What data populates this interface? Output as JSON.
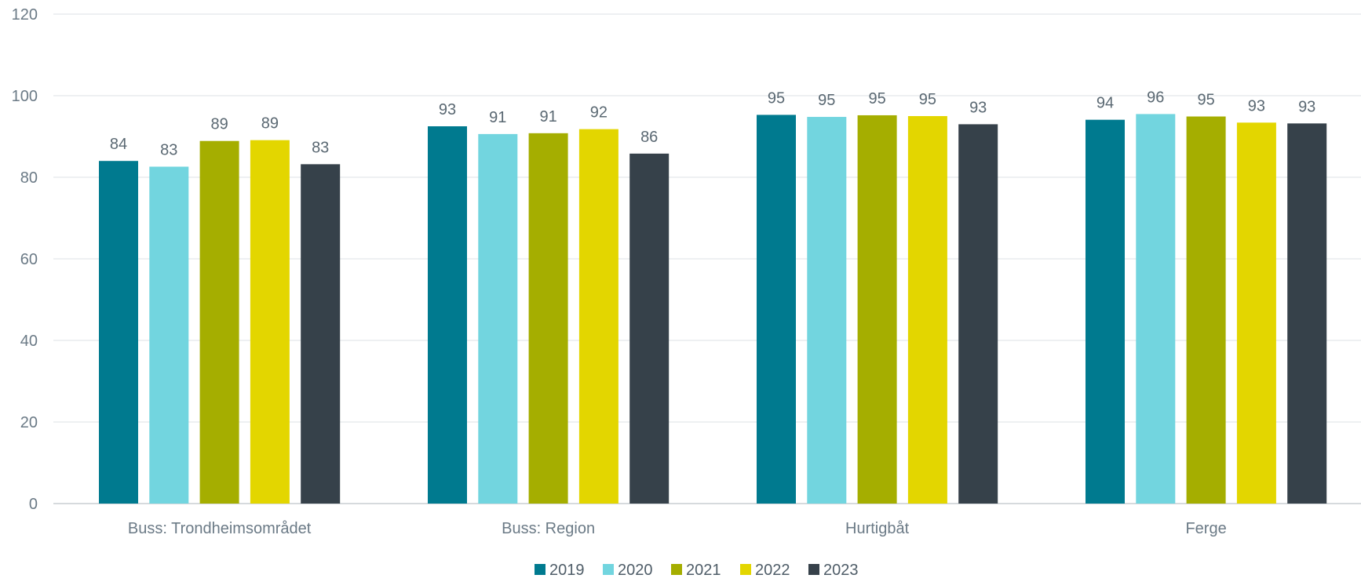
{
  "chart_data": {
    "type": "bar",
    "categories": [
      "Buss: Trondheimsområdet",
      "Buss: Region",
      "Hurtigbåt",
      "Ferge"
    ],
    "series": [
      {
        "name": "2019",
        "color": "#007a8f",
        "values": [
          84,
          92.5,
          95.3,
          94.1
        ],
        "labels": [
          "84",
          "93",
          "95",
          "94"
        ]
      },
      {
        "name": "2020",
        "color": "#72d5df",
        "values": [
          82.6,
          90.6,
          94.8,
          95.5
        ],
        "labels": [
          "83",
          "91",
          "95",
          "96"
        ]
      },
      {
        "name": "2021",
        "color": "#a5ae00",
        "values": [
          88.9,
          90.8,
          95.2,
          94.9
        ],
        "labels": [
          "89",
          "91",
          "95",
          "95"
        ]
      },
      {
        "name": "2022",
        "color": "#e3d600",
        "values": [
          89.1,
          91.8,
          95.0,
          93.4
        ],
        "labels": [
          "89",
          "92",
          "95",
          "93"
        ]
      },
      {
        "name": "2023",
        "color": "#36414a",
        "values": [
          83.2,
          85.8,
          93.0,
          93.2
        ],
        "labels": [
          "83",
          "86",
          "93",
          "93"
        ]
      }
    ],
    "yticks": [
      0,
      20,
      40,
      60,
      80,
      100,
      120
    ],
    "ylim": [
      0,
      120
    ],
    "grid": true,
    "legend_position": "bottom-center",
    "title": "",
    "xlabel": "",
    "ylabel": ""
  }
}
